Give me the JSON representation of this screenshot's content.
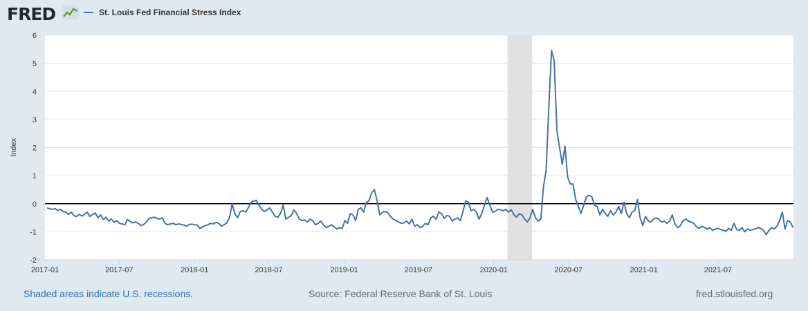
{
  "header": {
    "logo_text": "FRED",
    "series_name": "St. Louis Fed Financial Stress Index"
  },
  "footer": {
    "recession_note": "Shaded areas indicate U.S. recessions.",
    "source": "Source: Federal Reserve Bank of St. Louis",
    "site": "fred.stlouisfed.org"
  },
  "colors": {
    "line": "#4572a7",
    "recession": "#e1e1e1",
    "background": "#e1e9f0",
    "zero_line": "#000000"
  },
  "chart_data": {
    "type": "line",
    "title": "St. Louis Fed Financial Stress Index",
    "ylabel": "Index",
    "xlabel": "",
    "frequency": "weekly",
    "x_start": "2017-01-06",
    "ylim": [
      -2,
      6
    ],
    "yticks": [
      -2,
      -1,
      0,
      1,
      2,
      3,
      4,
      5,
      6
    ],
    "xticks": [
      "2017-01",
      "2017-07",
      "2018-01",
      "2018-07",
      "2019-01",
      "2019-07",
      "2020-01",
      "2020-07",
      "2021-01",
      "2021-07"
    ],
    "x_end": "2021-12-31",
    "grid": true,
    "reference_line": 0,
    "recession": {
      "start": "2020-02",
      "end": "2020-04"
    },
    "values": [
      -0.15,
      -0.18,
      -0.2,
      -0.17,
      -0.24,
      -0.2,
      -0.28,
      -0.3,
      -0.38,
      -0.3,
      -0.42,
      -0.46,
      -0.38,
      -0.44,
      -0.37,
      -0.3,
      -0.46,
      -0.38,
      -0.33,
      -0.5,
      -0.4,
      -0.56,
      -0.48,
      -0.62,
      -0.55,
      -0.66,
      -0.6,
      -0.7,
      -0.72,
      -0.75,
      -0.56,
      -0.64,
      -0.68,
      -0.65,
      -0.7,
      -0.78,
      -0.74,
      -0.65,
      -0.52,
      -0.5,
      -0.48,
      -0.52,
      -0.55,
      -0.5,
      -0.7,
      -0.75,
      -0.72,
      -0.7,
      -0.75,
      -0.72,
      -0.74,
      -0.76,
      -0.8,
      -0.74,
      -0.73,
      -0.75,
      -0.76,
      -0.88,
      -0.82,
      -0.78,
      -0.75,
      -0.7,
      -0.72,
      -0.66,
      -0.7,
      -0.8,
      -0.75,
      -0.68,
      -0.5,
      0.0,
      -0.35,
      -0.5,
      -0.28,
      -0.25,
      -0.3,
      -0.15,
      0.05,
      0.1,
      0.12,
      -0.05,
      -0.2,
      -0.28,
      -0.22,
      -0.15,
      -0.3,
      -0.45,
      -0.48,
      -0.35,
      -0.05,
      -0.55,
      -0.48,
      -0.42,
      -0.22,
      -0.34,
      -0.55,
      -0.6,
      -0.58,
      -0.65,
      -0.55,
      -0.6,
      -0.75,
      -0.7,
      -0.62,
      -0.75,
      -0.85,
      -0.8,
      -0.75,
      -0.82,
      -0.9,
      -0.85,
      -0.88,
      -0.6,
      -0.7,
      -0.35,
      -0.4,
      -0.6,
      -0.2,
      -0.15,
      -0.3,
      0.05,
      0.1,
      0.4,
      0.5,
      0.1,
      -0.4,
      -0.3,
      -0.28,
      -0.32,
      -0.45,
      -0.55,
      -0.6,
      -0.65,
      -0.7,
      -0.68,
      -0.62,
      -0.72,
      -0.55,
      -0.8,
      -0.75,
      -0.85,
      -0.8,
      -0.7,
      -0.75,
      -0.5,
      -0.45,
      -0.55,
      -0.3,
      -0.35,
      -0.52,
      -0.42,
      -0.45,
      -0.62,
      -0.55,
      -0.5,
      -0.6,
      -0.28,
      0.1,
      0.05,
      -0.25,
      -0.2,
      -0.3,
      -0.55,
      -0.35,
      -0.05,
      0.22,
      -0.05,
      -0.3,
      -0.28,
      -0.2,
      -0.22,
      -0.25,
      -0.2,
      -0.3,
      -0.22,
      -0.4,
      -0.48,
      -0.35,
      -0.4,
      -0.55,
      -0.65,
      -0.5,
      -0.2,
      -0.5,
      -0.62,
      -0.55,
      0.6,
      1.2,
      3.5,
      5.45,
      5.1,
      2.6,
      2.0,
      1.4,
      2.05,
      0.95,
      0.7,
      0.7,
      0.15,
      -0.1,
      -0.35,
      -0.05,
      0.25,
      0.3,
      0.25,
      -0.05,
      -0.1,
      -0.4,
      -0.2,
      -0.35,
      -0.45,
      -0.25,
      -0.4,
      -0.3,
      -0.1,
      -0.35,
      0.05,
      -0.35,
      -0.5,
      -0.3,
      -0.25,
      0.15,
      -0.5,
      -0.78,
      -0.45,
      -0.6,
      -0.65,
      -0.55,
      -0.5,
      -0.55,
      -0.65,
      -0.62,
      -0.7,
      -0.62,
      -0.4,
      -0.72,
      -0.85,
      -0.78,
      -0.6,
      -0.55,
      -0.62,
      -0.65,
      -0.7,
      -0.82,
      -0.88,
      -0.8,
      -0.85,
      -0.9,
      -0.85,
      -0.95,
      -0.9,
      -0.88,
      -0.92,
      -0.95,
      -0.98,
      -0.88,
      -0.95,
      -0.7,
      -0.92,
      -0.95,
      -0.85,
      -1.0,
      -0.9,
      -0.95,
      -0.92,
      -0.9,
      -0.85,
      -0.88,
      -0.95,
      -1.1,
      -0.95,
      -0.85,
      -0.9,
      -0.8,
      -0.6,
      -0.3,
      -0.9,
      -0.6,
      -0.65,
      -0.85
    ]
  }
}
